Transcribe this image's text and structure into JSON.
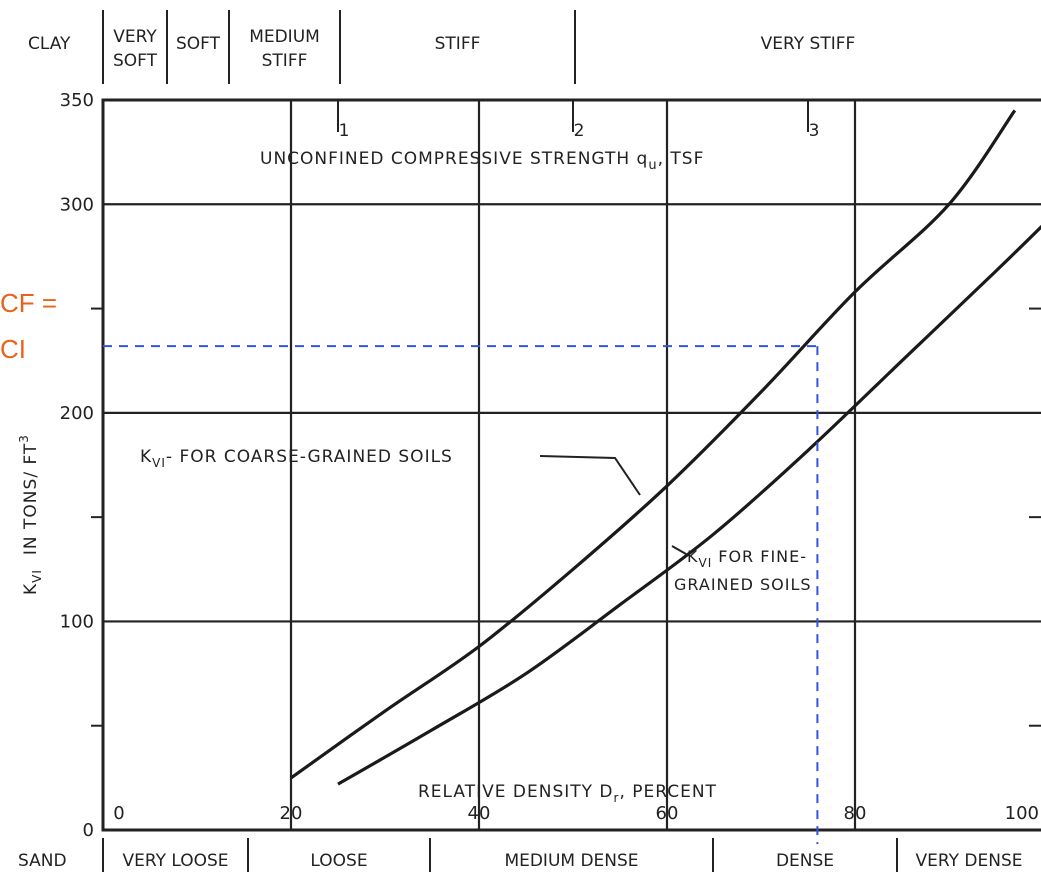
{
  "clay_header": {
    "title": "CLAY",
    "categories": [
      {
        "label_lines": [
          "VERY",
          "SOFT"
        ]
      },
      {
        "label_lines": [
          "SOFT"
        ]
      },
      {
        "label_lines": [
          "MEDIUM",
          "STIFF"
        ]
      },
      {
        "label_lines": [
          "STIFF"
        ]
      },
      {
        "label_lines": [
          "VERY  STIFF"
        ]
      }
    ]
  },
  "sand_footer": {
    "title": "SAND",
    "categories": [
      "VERY LOOSE",
      "LOOSE",
      "MEDIUM  DENSE",
      "DENSE",
      "VERY DENSE"
    ]
  },
  "overlay": {
    "line1": "CF =",
    "line2": "CI",
    "color": "#e8621c",
    "guide_color": "#3355dd"
  },
  "chart_data": {
    "type": "line",
    "ylabel_main": "K",
    "ylabel_sub": "VI",
    "ylabel_rest": "IN TONS/ FT",
    "ylabel_sup": "3",
    "top_axis_label": "UNCONFINED COMPRESSIVE STRENGTH  q",
    "top_axis_sub": "u",
    "top_axis_unit": ", TSF",
    "bottom_axis_label": "RELATIVE DENSITY D",
    "bottom_axis_sub": "r",
    "bottom_axis_unit": ",  PERCENT",
    "xlim": [
      0,
      100
    ],
    "ylim": [
      0,
      350
    ],
    "x_ticks": [
      0,
      20,
      40,
      60,
      80,
      100
    ],
    "y_ticks": [
      0,
      100,
      200,
      300,
      350
    ],
    "y_minor_ticks": [
      50,
      150,
      250
    ],
    "top_ticks": [
      {
        "label": "1",
        "x": 25
      },
      {
        "label": "2",
        "x": 50
      },
      {
        "label": "3",
        "x": 75
      }
    ],
    "clay_boundaries_qu": [
      0.25,
      0.5,
      1,
      2
    ],
    "sand_boundaries_dr": [
      15,
      35,
      65,
      85
    ],
    "series": [
      {
        "label_main": "K",
        "label_sub": "VI",
        "label_rest": "- FOR COARSE-GRAINED SOILS",
        "x": [
          20,
          30,
          40,
          50,
          60,
          70,
          80,
          90,
          97
        ],
        "y": [
          25,
          57,
          88,
          125,
          165,
          210,
          258,
          300,
          345
        ]
      },
      {
        "label_main": "K",
        "label_sub": "VI",
        "label_rest": "FOR FINE-",
        "label_line2": "GRAINED SOILS",
        "x": [
          25,
          35,
          45,
          55,
          65,
          75,
          85,
          95,
          100
        ],
        "y": [
          22,
          48,
          75,
          108,
          142,
          182,
          225,
          268,
          290
        ]
      }
    ],
    "guide": {
      "x": 76,
      "y": 232
    }
  }
}
